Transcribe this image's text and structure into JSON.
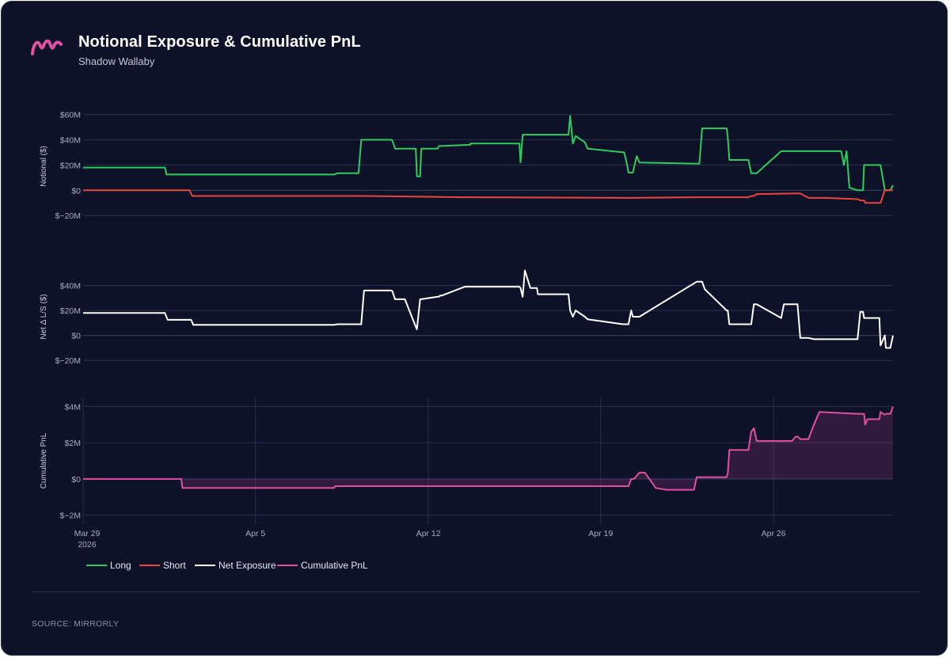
{
  "header": {
    "title": "Notional Exposure & Cumulative PnL",
    "subtitle": "Shadow Wallaby"
  },
  "footer": {
    "source": "SOURCE: MIRRORLY"
  },
  "colors": {
    "long": "#2ecc5a",
    "short": "#e8463b",
    "net": "#ffffff",
    "pnl": "#e0509e",
    "logo": "#e0509e"
  },
  "logo_icon": "mirrorly-m-logo-icon",
  "chart_data": [
    {
      "type": "line",
      "ylabel": "Notional ($)",
      "ylim": [
        -28,
        66
      ],
      "yticks": [
        -20,
        0,
        20,
        40,
        60
      ],
      "ytick_labels": [
        "$−20M",
        "$0",
        "$20M",
        "$40M",
        "$60M"
      ],
      "series": [
        {
          "name": "Long",
          "x": [
            0,
            0.2,
            1.5,
            1.53,
            4.6,
            4.66,
            5.05,
            5.1,
            5.6,
            5.65,
            5.67,
            5.72,
            5.78,
            5.85,
            5.9,
            6.1,
            6.12,
            6.18,
            6.2,
            6.5,
            6.52,
            7.1,
            7.1,
            8.0,
            8.02,
            8.06,
            8.1,
            8.18,
            8.2,
            8.32,
            8.34,
            8.45,
            8.5,
            8.9,
            8.93,
            8.98,
            9.03,
            9.2,
            9.25,
            9.9,
            9.92,
            9.96,
            10.0,
            10.05,
            10.08,
            10.15,
            10.2,
            11.25,
            11.3,
            11.35,
            11.4,
            11.8,
            11.82,
            11.85,
            12.2,
            12.25,
            12.3,
            12.35,
            12.8,
            12.85,
            13.9,
            13.95,
            14.0,
            14.05,
            14.2,
            14.3,
            14.32,
            14.34,
            14.38,
            14.6,
            14.62,
            14.7,
            14.72,
            14.8,
            14.85
          ],
          "values": [
            18,
            18,
            18,
            12.5,
            12.5,
            13.5,
            13.5,
            40,
            40,
            40,
            39.5,
            33,
            33,
            33,
            33,
            33,
            11,
            11,
            33,
            33,
            35,
            36,
            37,
            37,
            22,
            44,
            44,
            44,
            44,
            44,
            44,
            44,
            44,
            44,
            59,
            37,
            43,
            38,
            33,
            30,
            30,
            23,
            14,
            14,
            14,
            27,
            22,
            21,
            21,
            49,
            49,
            49,
            42,
            24,
            24,
            13.5,
            13.5,
            13.5,
            31,
            31,
            31,
            20,
            31,
            2,
            0,
            0,
            20,
            20,
            20,
            20,
            20,
            0,
            0,
            0,
            4
          ]
        },
        {
          "name": "Short",
          "x": [
            0,
            1.95,
            2.0,
            5.1,
            5.15,
            7.0,
            7.05,
            10.0,
            10.05,
            11.2,
            11.25,
            12.2,
            12.25,
            12.3,
            12.35,
            13.1,
            13.15,
            13.3,
            13.4,
            13.5,
            13.6,
            14.2,
            14.25,
            14.3,
            14.32,
            14.34,
            14.38,
            14.6,
            14.62,
            14.7,
            14.72,
            14.8,
            14.85
          ],
          "values": [
            0,
            0,
            -4.5,
            -4.5,
            -4.5,
            -5.5,
            -5.5,
            -6,
            -6,
            -5.5,
            -5.5,
            -5.5,
            -4.5,
            -4.5,
            -3,
            -2.5,
            -2.5,
            -6,
            -6,
            -6,
            -6,
            -7,
            -8,
            -8,
            -8,
            -10,
            -10,
            -10,
            -10,
            0,
            0,
            0,
            0
          ]
        }
      ]
    },
    {
      "type": "line",
      "ylabel": "Net Δ L/S ($)",
      "ylim": [
        -30,
        60
      ],
      "yticks": [
        -20,
        0,
        20,
        40
      ],
      "ytick_labels": [
        "$−20M",
        "$0",
        "$20M",
        "$40M"
      ],
      "series": [
        {
          "name": "Net Exposure",
          "x": [
            0,
            1.5,
            1.55,
            1.98,
            2.02,
            4.6,
            4.66,
            5.1,
            5.15,
            5.6,
            5.65,
            5.67,
            5.72,
            5.75,
            5.78,
            5.9,
            6.1,
            6.12,
            6.18,
            6.2,
            6.5,
            6.52,
            6.55,
            6.58,
            7.0,
            7.05,
            8.0,
            8.02,
            8.06,
            8.1,
            8.2,
            8.32,
            8.34,
            8.45,
            8.5,
            8.9,
            8.93,
            8.98,
            9.03,
            9.2,
            9.25,
            9.9,
            9.92,
            9.96,
            10.0,
            10.05,
            10.08,
            10.15,
            10.2,
            11.25,
            11.3,
            11.35,
            11.4,
            11.8,
            11.82,
            11.85,
            12.2,
            12.25,
            12.3,
            12.35,
            12.8,
            12.85,
            13.1,
            13.15,
            13.3,
            13.4,
            13.5,
            14.2,
            14.25,
            14.3,
            14.32,
            14.34,
            14.38,
            14.6,
            14.62,
            14.7,
            14.72,
            14.8,
            14.85
          ],
          "values": [
            18,
            18,
            12.5,
            12.5,
            8.5,
            8.5,
            9,
            9,
            36,
            36,
            36,
            35.5,
            29,
            29,
            29,
            29,
            7,
            5,
            29,
            29,
            31,
            31,
            32,
            32,
            39,
            39,
            39,
            38,
            31,
            52,
            38,
            38,
            33,
            33,
            33,
            33,
            20,
            15,
            20,
            15,
            13,
            9,
            9,
            9,
            9,
            20,
            15,
            15,
            15,
            43,
            43,
            43,
            37,
            20,
            20,
            9,
            9,
            9,
            25,
            25,
            14,
            25,
            25,
            -2,
            -2,
            -3,
            -3,
            -3,
            19,
            19,
            14,
            14,
            14,
            14,
            -8,
            0,
            -10,
            -10,
            0
          ]
        }
      ]
    },
    {
      "type": "area",
      "ylabel": "Cumulative PnL",
      "ylim": [
        -2.5,
        4.5
      ],
      "yticks": [
        -2,
        0,
        2,
        4
      ],
      "ytick_labels": [
        "$−2M",
        "$0",
        "$2M",
        "$4M"
      ],
      "xtick_labels": [
        "Mar 29\n2026",
        "Apr 5",
        "Apr 12",
        "Apr 19",
        "Apr 26"
      ],
      "series": [
        {
          "name": "Cumulative PnL",
          "x": [
            0,
            1.8,
            1.82,
            4.6,
            4.62,
            10.0,
            10.05,
            10.1,
            10.2,
            10.3,
            10.5,
            10.7,
            11.2,
            11.25,
            11.3,
            11.4,
            11.8,
            11.82,
            11.85,
            12.2,
            12.25,
            12.3,
            12.35,
            13.0,
            13.05,
            13.1,
            13.15,
            13.2,
            13.3,
            13.4,
            13.5,
            14.2,
            14.25,
            14.3,
            14.32,
            14.34,
            14.38,
            14.6,
            14.62,
            14.7,
            14.72,
            14.8,
            14.85
          ],
          "values": [
            0,
            0,
            -0.5,
            -0.5,
            -0.4,
            -0.4,
            0.0,
            0.0,
            0.35,
            0.35,
            -0.5,
            -0.6,
            -0.6,
            0.1,
            0.1,
            0.1,
            0.1,
            0.3,
            1.6,
            1.6,
            2.6,
            2.8,
            2.1,
            2.1,
            2.3,
            2.35,
            2.2,
            2.2,
            2.2,
            3.0,
            3.7,
            3.6,
            3.6,
            3.6,
            3.6,
            3.0,
            3.3,
            3.3,
            3.7,
            3.55,
            3.6,
            3.6,
            4.0
          ]
        }
      ]
    }
  ],
  "legend": {
    "items": [
      {
        "label": "Long"
      },
      {
        "label": "Short"
      },
      {
        "label": "Net Exposure"
      },
      {
        "label": "Cumulative PnL"
      }
    ]
  }
}
